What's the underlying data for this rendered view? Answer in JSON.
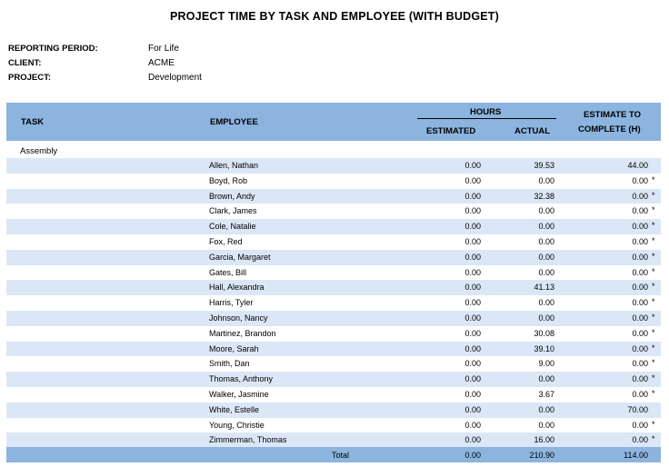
{
  "report": {
    "title": "PROJECT TIME BY TASK AND EMPLOYEE (WITH BUDGET)",
    "reporting_period_label": "REPORTING PERIOD:",
    "reporting_period": "For Life",
    "client_label": "CLIENT:",
    "client": "ACME",
    "project_label": "PROJECT:",
    "project": "Development"
  },
  "header": {
    "task": "TASK",
    "employee": "EMPLOYEE",
    "hours": "HOURS",
    "estimated": "ESTIMATED",
    "actual": "ACTUAL",
    "etc_line1": "ESTIMATE TO",
    "etc_line2": "COMPLETE (H)"
  },
  "group": {
    "task": "Assembly",
    "rows": [
      {
        "employee": "Allen, Nathan",
        "estimated": "0.00",
        "actual": "39.53",
        "etc": "44.00",
        "flag": ""
      },
      {
        "employee": "Boyd, Rob",
        "estimated": "0.00",
        "actual": "0.00",
        "etc": "0.00",
        "flag": "*"
      },
      {
        "employee": "Brown, Andy",
        "estimated": "0.00",
        "actual": "32.38",
        "etc": "0.00",
        "flag": "*"
      },
      {
        "employee": "Clark, James",
        "estimated": "0.00",
        "actual": "0.00",
        "etc": "0.00",
        "flag": "*"
      },
      {
        "employee": "Cole, Natalie",
        "estimated": "0.00",
        "actual": "0.00",
        "etc": "0.00",
        "flag": "*"
      },
      {
        "employee": "Fox, Red",
        "estimated": "0.00",
        "actual": "0.00",
        "etc": "0.00",
        "flag": "*"
      },
      {
        "employee": "Garcia, Margaret",
        "estimated": "0.00",
        "actual": "0.00",
        "etc": "0.00",
        "flag": "*"
      },
      {
        "employee": "Gates, Bill",
        "estimated": "0.00",
        "actual": "0.00",
        "etc": "0.00",
        "flag": "*"
      },
      {
        "employee": "Hall, Alexandra",
        "estimated": "0.00",
        "actual": "41.13",
        "etc": "0.00",
        "flag": "*"
      },
      {
        "employee": "Harris, Tyler",
        "estimated": "0.00",
        "actual": "0.00",
        "etc": "0.00",
        "flag": "*"
      },
      {
        "employee": "Johnson, Nancy",
        "estimated": "0.00",
        "actual": "0.00",
        "etc": "0.00",
        "flag": "*"
      },
      {
        "employee": "Martinez, Brandon",
        "estimated": "0.00",
        "actual": "30.08",
        "etc": "0.00",
        "flag": "*"
      },
      {
        "employee": "Moore, Sarah",
        "estimated": "0.00",
        "actual": "39.10",
        "etc": "0.00",
        "flag": "*"
      },
      {
        "employee": "Smith, Dan",
        "estimated": "0.00",
        "actual": "9.00",
        "etc": "0.00",
        "flag": "*"
      },
      {
        "employee": "Thomas, Anthony",
        "estimated": "0.00",
        "actual": "0.00",
        "etc": "0.00",
        "flag": "*"
      },
      {
        "employee": "Walker, Jasmine",
        "estimated": "0.00",
        "actual": "3.67",
        "etc": "0.00",
        "flag": "*"
      },
      {
        "employee": "White, Estelle",
        "estimated": "0.00",
        "actual": "0.00",
        "etc": "70.00",
        "flag": ""
      },
      {
        "employee": "Young, Christie",
        "estimated": "0.00",
        "actual": "0.00",
        "etc": "0.00",
        "flag": "*"
      },
      {
        "employee": "Zimmerman, Thomas",
        "estimated": "0.00",
        "actual": "16.00",
        "etc": "0.00",
        "flag": "*"
      }
    ],
    "total": {
      "label": "Total",
      "estimated": "0.00",
      "actual": "210.90",
      "etc": "114.00"
    }
  },
  "colors": {
    "header_bg": "#8cb4df",
    "stripe": "#dbe7f6"
  }
}
